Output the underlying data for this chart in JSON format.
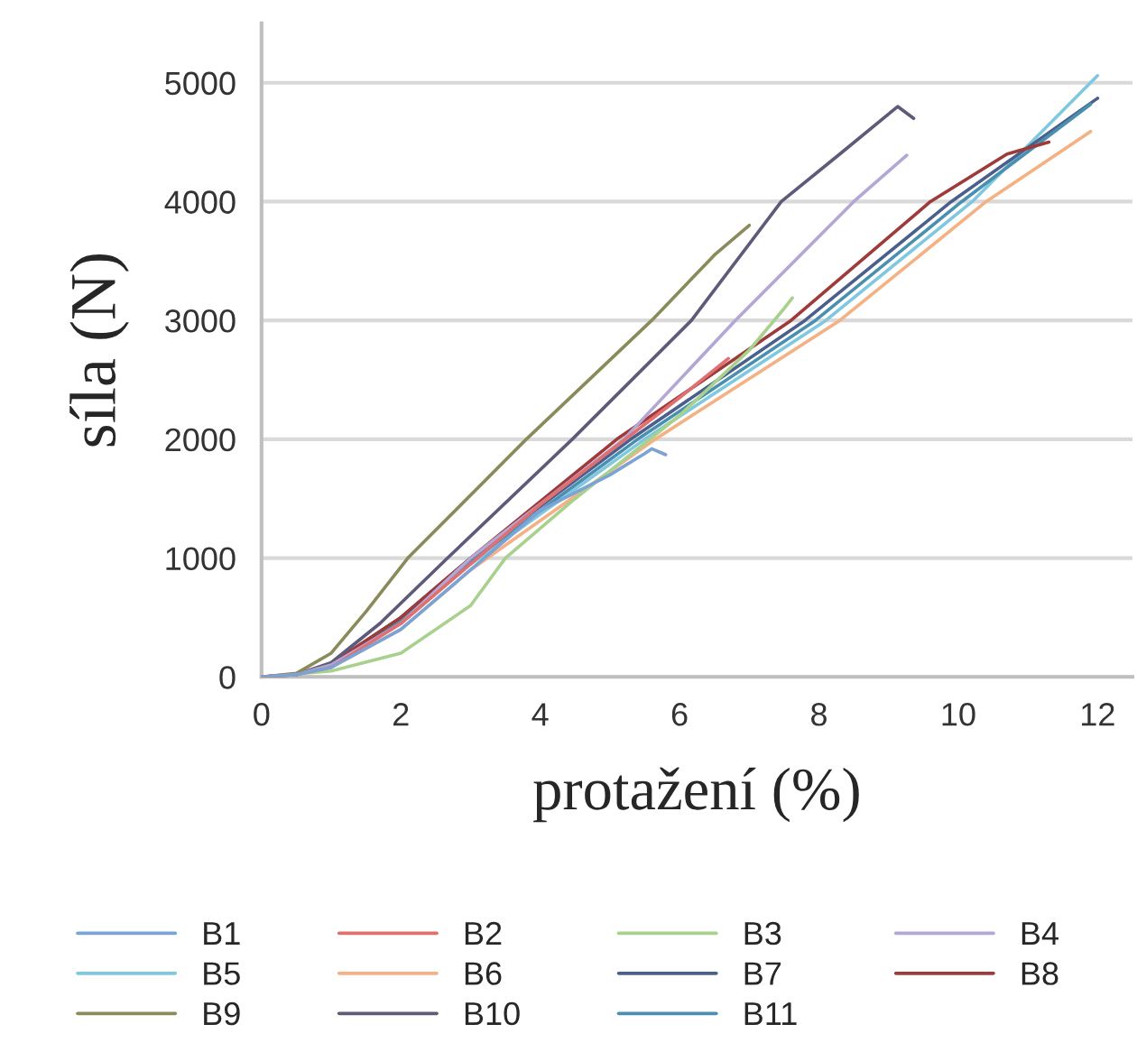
{
  "chart_data": {
    "type": "line",
    "xlabel": "protažení (%)",
    "ylabel": "síla (N)",
    "xlim": [
      0,
      12.5
    ],
    "ylim": [
      0,
      5500
    ],
    "xticks": [
      0,
      2,
      4,
      6,
      8,
      10,
      12
    ],
    "yticks": [
      0,
      1000,
      2000,
      3000,
      4000,
      5000
    ],
    "grid": "y",
    "legend": "bottom",
    "marker": "none",
    "line_style": "solid",
    "series": [
      {
        "name": "B1",
        "color": "#7ba3d6",
        "x": [
          0,
          0.5,
          1,
          2,
          3,
          4,
          5,
          5.5,
          5.6,
          5.8
        ],
        "values": [
          0,
          20,
          80,
          400,
          900,
          1400,
          1700,
          1880,
          1920,
          1870
        ]
      },
      {
        "name": "B2",
        "color": "#e07070",
        "x": [
          0,
          0.5,
          1,
          2,
          3,
          4,
          5,
          6,
          6.7
        ],
        "values": [
          0,
          20,
          80,
          450,
          950,
          1450,
          1900,
          2350,
          2680
        ]
      },
      {
        "name": "B3",
        "color": "#a9d18e",
        "x": [
          0,
          1,
          2,
          3,
          3.5,
          4.5,
          6,
          7,
          7.5,
          7.62
        ],
        "values": [
          0,
          50,
          200,
          600,
          1000,
          1500,
          2200,
          2750,
          3100,
          3190
        ]
      },
      {
        "name": "B4",
        "color": "#b4a7d6",
        "x": [
          0,
          0.5,
          1,
          2,
          3,
          5.2,
          6.8,
          8.5,
          9.26
        ],
        "values": [
          0,
          20,
          100,
          450,
          1000,
          2000,
          3000,
          4000,
          4390
        ]
      },
      {
        "name": "B5",
        "color": "#7fc8e0",
        "x": [
          0,
          0.5,
          1,
          2,
          3,
          5.5,
          8.1,
          10.2,
          12.0
        ],
        "values": [
          0,
          20,
          100,
          450,
          950,
          2000,
          3000,
          4000,
          5060
        ]
      },
      {
        "name": "B6",
        "color": "#f4b183",
        "x": [
          1,
          2,
          3,
          5.65,
          8.3,
          10.4,
          11.9
        ],
        "values": [
          80,
          400,
          900,
          2000,
          3000,
          4000,
          4590
        ]
      },
      {
        "name": "B7",
        "color": "#4a5f8c",
        "x": [
          0,
          0.5,
          1,
          2,
          3,
          5.3,
          7.8,
          9.9,
          12.0
        ],
        "values": [
          0,
          20,
          110,
          500,
          1000,
          2000,
          3000,
          4000,
          4870
        ]
      },
      {
        "name": "B8",
        "color": "#9e3a3a",
        "x": [
          0,
          0.5,
          1,
          2,
          3,
          5.1,
          7.6,
          9.6,
          10.7,
          11.3
        ],
        "values": [
          0,
          20,
          110,
          500,
          1000,
          2000,
          3000,
          4000,
          4400,
          4500
        ]
      },
      {
        "name": "B9",
        "color": "#8a8a5a",
        "x": [
          0,
          0.5,
          1,
          1.5,
          2.1,
          3.8,
          5.6,
          6.5,
          7.0
        ],
        "values": [
          0,
          30,
          200,
          550,
          1000,
          2000,
          3000,
          3550,
          3800
        ]
      },
      {
        "name": "B10",
        "color": "#5f5a7a",
        "x": [
          0,
          0.5,
          1,
          1.7,
          2.67,
          4.46,
          6.17,
          7.46,
          8.3,
          9.13,
          9.36
        ],
        "values": [
          0,
          20,
          120,
          450,
          1000,
          2000,
          3000,
          4000,
          4400,
          4800,
          4700
        ]
      },
      {
        "name": "B11",
        "color": "#4a8fb0",
        "x": [
          0,
          0.5,
          1,
          2,
          3,
          5.4,
          7.95,
          10.05,
          11.9
        ],
        "values": [
          0,
          20,
          100,
          470,
          970,
          2000,
          3000,
          4000,
          4820
        ]
      }
    ]
  }
}
